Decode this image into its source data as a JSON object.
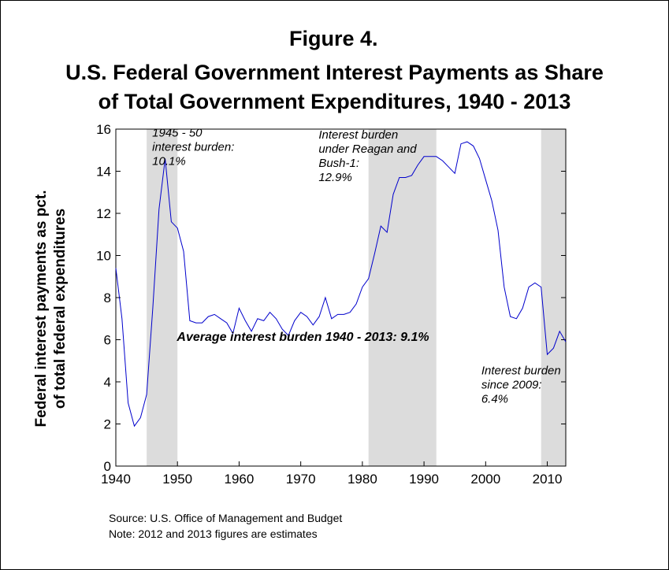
{
  "title": {
    "line1": "Figure 4.",
    "line2": "U.S. Federal Government Interest Payments as Share",
    "line3": "of Total Government Expenditures, 1940 - 2013"
  },
  "notes": {
    "source": "Source:  U.S. Office of Management and Budget",
    "note": "Note:  2012 and 2013 figures are estimates"
  },
  "colors": {
    "line": "#0000cc",
    "shade": "#dcdcdc"
  },
  "chart_data": {
    "type": "line",
    "ylabel": [
      "Federal interest payments as pct.",
      "of total federal expenditures"
    ],
    "xlabel": "",
    "xlim": [
      1940,
      2013
    ],
    "ylim": [
      0,
      16
    ],
    "xticks": [
      1940,
      1950,
      1960,
      1970,
      1980,
      1990,
      2000,
      2010
    ],
    "yticks": [
      0,
      2,
      4,
      6,
      8,
      10,
      12,
      14,
      16
    ],
    "shaded_periods": [
      [
        1945,
        1950
      ],
      [
        1981,
        1992
      ],
      [
        2009,
        2013
      ]
    ],
    "series": [
      {
        "x": [
          1940,
          1941,
          1942,
          1943,
          1944,
          1945,
          1946,
          1947,
          1948,
          1949,
          1950,
          1951,
          1952,
          1953,
          1954,
          1955,
          1956,
          1957,
          1958,
          1959,
          1960,
          1961,
          1962,
          1963,
          1964,
          1965,
          1966,
          1967,
          1968,
          1969,
          1970,
          1971,
          1972,
          1973,
          1974,
          1975,
          1976,
          1977,
          1978,
          1979,
          1980,
          1981,
          1982,
          1983,
          1984,
          1985,
          1986,
          1987,
          1988,
          1989,
          1990,
          1991,
          1992,
          1993,
          1994,
          1995,
          1996,
          1997,
          1998,
          1999,
          2000,
          2001,
          2002,
          2003,
          2004,
          2005,
          2006,
          2007,
          2008,
          2009,
          2010,
          2011,
          2012,
          2013
        ],
        "y": [
          9.4,
          7.0,
          3.0,
          1.9,
          2.3,
          3.4,
          7.5,
          12.2,
          14.6,
          11.6,
          11.3,
          10.2,
          6.9,
          6.8,
          6.8,
          7.1,
          7.2,
          7.0,
          6.8,
          6.3,
          7.5,
          6.9,
          6.4,
          7.0,
          6.9,
          7.3,
          7.0,
          6.5,
          6.2,
          6.9,
          7.3,
          7.1,
          6.7,
          7.1,
          8.0,
          7.0,
          7.2,
          7.2,
          7.3,
          7.7,
          8.5,
          8.9,
          10.1,
          11.4,
          11.1,
          12.9,
          13.7,
          13.7,
          13.8,
          14.3,
          14.7,
          14.7,
          14.7,
          14.5,
          14.2,
          13.9,
          15.3,
          15.4,
          15.2,
          14.6,
          13.6,
          12.6,
          11.2,
          8.5,
          7.1,
          7.0,
          7.5,
          8.5,
          8.7,
          8.5,
          5.3,
          5.6,
          6.4,
          5.9
        ]
      }
    ],
    "annotations": [
      {
        "lines": [
          "1945 - 50",
          "interest burden:",
          "10.1%"
        ]
      },
      {
        "lines": [
          "Interest burden",
          "under Reagan and",
          "Bush-1:",
          "12.9%"
        ]
      },
      {
        "lines": [
          "Average interest burden 1940 - 2013:  9.1%"
        ]
      },
      {
        "lines": [
          "Interest burden",
          "since 2009:",
          "6.4%"
        ]
      }
    ]
  }
}
